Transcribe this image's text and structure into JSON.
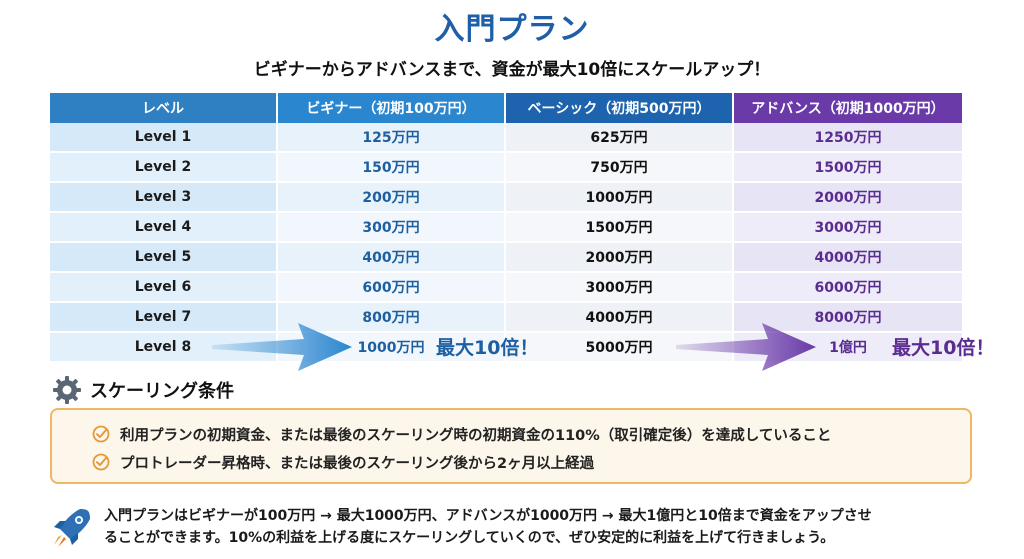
{
  "header": {
    "title": "入門プラン",
    "subtitle": "ビギナーからアドバンスまで、資金が最大10倍にスケールアップ！"
  },
  "table": {
    "columns": [
      "レベル",
      "ビギナー（初期100万円）",
      "ベーシック（初期500万円）",
      "アドバンス（初期1000万円）"
    ],
    "rows": [
      {
        "level": "Level 1",
        "beginner": "125万円",
        "basic": "625万円",
        "advance": "1250万円"
      },
      {
        "level": "Level 2",
        "beginner": "150万円",
        "basic": "750万円",
        "advance": "1500万円"
      },
      {
        "level": "Level 3",
        "beginner": "200万円",
        "basic": "1000万円",
        "advance": "2000万円"
      },
      {
        "level": "Level 4",
        "beginner": "300万円",
        "basic": "1500万円",
        "advance": "3000万円"
      },
      {
        "level": "Level 5",
        "beginner": "400万円",
        "basic": "2000万円",
        "advance": "4000万円"
      },
      {
        "level": "Level 6",
        "beginner": "600万円",
        "basic": "3000万円",
        "advance": "6000万円"
      },
      {
        "level": "Level 7",
        "beginner": "800万円",
        "basic": "4000万円",
        "advance": "8000万円"
      },
      {
        "level": "Level 8",
        "beginner": "1000万円",
        "basic": "5000万円",
        "advance": "1億円"
      }
    ],
    "callout_beginner": "最大10倍！",
    "callout_advance": "最大10倍！"
  },
  "conditions": {
    "heading": "スケーリング条件",
    "icon": "gear-icon",
    "items": [
      "利用プランの初期資金、または最後のスケーリング時の初期資金の110%（取引確定後）を達成していること",
      "プロトレーダー昇格時、または最後のスケーリング後から2ヶ月以上経過"
    ]
  },
  "footer": {
    "icon": "rocket-icon",
    "line1": "入門プランはビギナーが100万円 → 最大1000万円、アドバンスが1000万円 → 最大1億円と10倍まで資金をアップさせ",
    "line2": "ることができます。10%の利益を上げる度にスケーリングしていくので、ぜひ安定的に利益を上げて行きましょう。"
  },
  "colors": {
    "title": "#1f5fa8",
    "beginner": "#2a86cf",
    "basic": "#1d63ad",
    "advance": "#6a3aa8",
    "condition_border": "#efb665"
  }
}
